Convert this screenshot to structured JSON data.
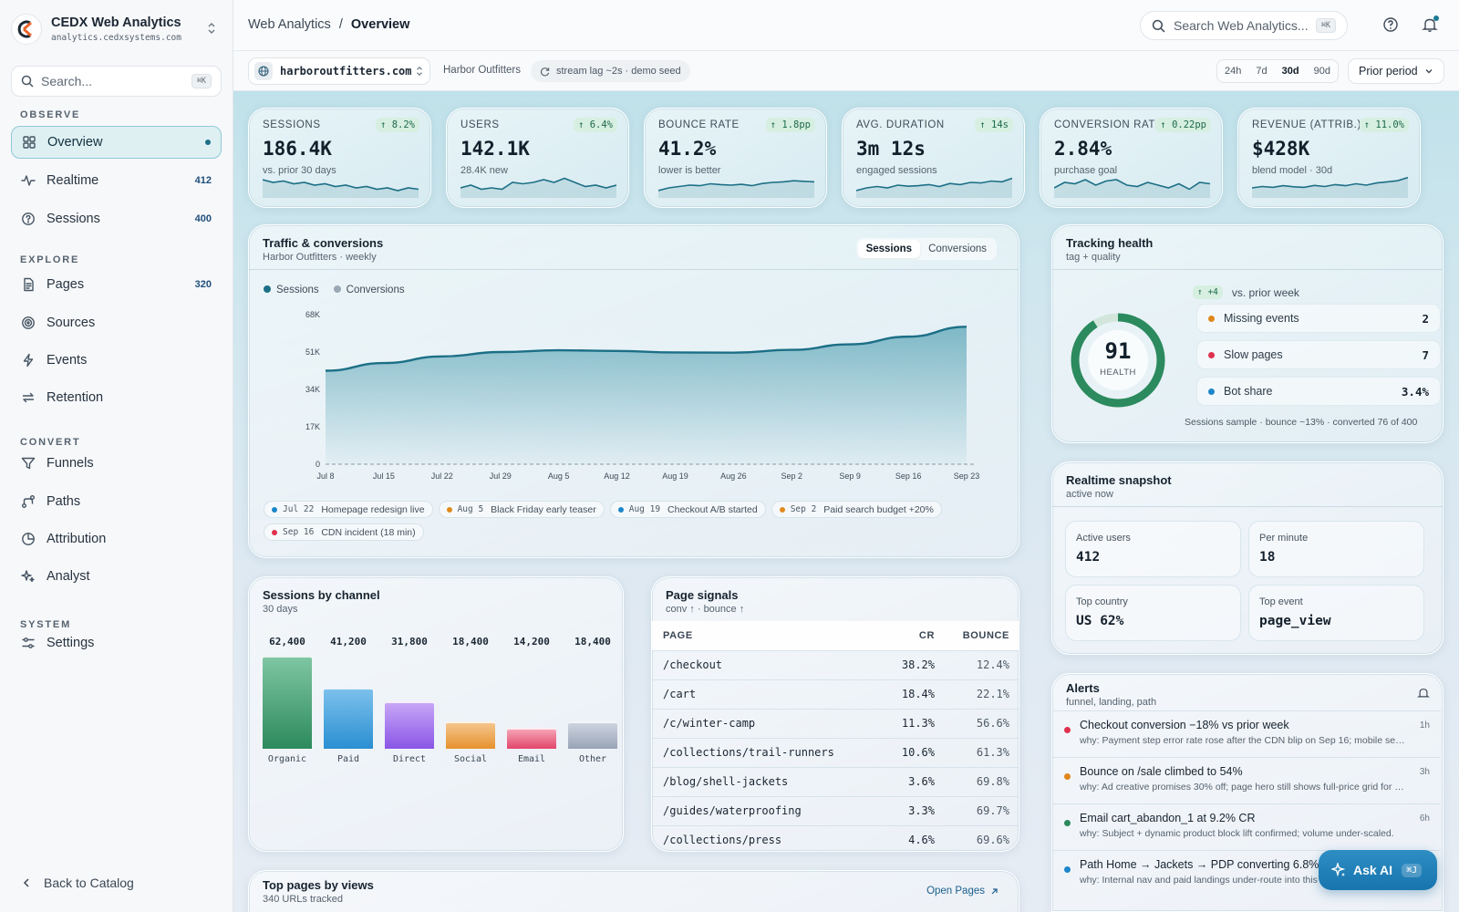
{
  "app": {
    "title": "CEDX Web Analytics",
    "domain": "analytics.cedxsystems.com"
  },
  "sidebar": {
    "search_placeholder": "Search...",
    "search_kbd": "⌘K",
    "sections": {
      "observe": "OBSERVE",
      "explore": "EXPLORE",
      "convert": "CONVERT",
      "system": "SYSTEM"
    },
    "items": [
      {
        "label": "Overview",
        "icon": "grid-icon",
        "count": "",
        "active": true
      },
      {
        "label": "Realtime",
        "icon": "activity-icon",
        "count": "412"
      },
      {
        "label": "Sessions",
        "icon": "clock-icon",
        "count": "400"
      },
      {
        "label": "Pages",
        "icon": "file-icon",
        "count": "320"
      },
      {
        "label": "Sources",
        "icon": "radar-icon",
        "count": ""
      },
      {
        "label": "Events",
        "icon": "bolt-icon",
        "count": ""
      },
      {
        "label": "Retention",
        "icon": "repeat-icon",
        "count": ""
      },
      {
        "label": "Funnels",
        "icon": "funnel-icon",
        "count": ""
      },
      {
        "label": "Paths",
        "icon": "path-icon",
        "count": ""
      },
      {
        "label": "Attribution",
        "icon": "pie-icon",
        "count": ""
      },
      {
        "label": "Analyst",
        "icon": "sparkle-icon",
        "count": ""
      },
      {
        "label": "Settings",
        "icon": "sliders-icon",
        "count": ""
      }
    ],
    "back_label": "Back to Catalog"
  },
  "header": {
    "breadcrumb_root": "Web Analytics",
    "breadcrumb_sep": "/",
    "breadcrumb_current": "Overview",
    "search_placeholder": "Search Web Analytics...",
    "search_kbd": "⌘K"
  },
  "subbar": {
    "site": "harboroutfitters.com",
    "company": "Harbor Outfitters",
    "stream": "stream lag ~2s · demo seed",
    "ranges": [
      "24h",
      "7d",
      "30d",
      "90d"
    ],
    "selected_range": "30d",
    "compare": "Prior period"
  },
  "kpis": [
    {
      "label": "SESSIONS",
      "value": "186.4K",
      "delta": "↑ 8.2%",
      "sub": "vs. prior 30 days",
      "spark": [
        6,
        5,
        5.5,
        4.5,
        5,
        4,
        4.5,
        3.5,
        4,
        3,
        3.5,
        2.5,
        3,
        2,
        3,
        2.5
      ]
    },
    {
      "label": "USERS",
      "value": "142.1K",
      "delta": "↑ 6.4%",
      "sub": "28.4K new",
      "spark": [
        3,
        4,
        2.5,
        3,
        2.5,
        5,
        4.5,
        5,
        6,
        5,
        6.5,
        5,
        3.5,
        4,
        3,
        4
      ]
    },
    {
      "label": "BOUNCE RATE",
      "value": "41.2%",
      "delta": "↑ 1.8pp",
      "sub": "lower is better",
      "spark": [
        2,
        3,
        3.5,
        4,
        3.8,
        4.5,
        4.2,
        4,
        4.3,
        3.8,
        4.6,
        5,
        5.2,
        5.6,
        5.4,
        5.2
      ]
    },
    {
      "label": "AVG. DURATION",
      "value": "3m 12s",
      "delta": "↑ 14s",
      "sub": "engaged sessions",
      "spark": [
        2,
        3,
        3.5,
        3,
        4,
        3.6,
        3.8,
        4.2,
        3.5,
        4.6,
        4.2,
        5,
        4.8,
        5.5,
        5.2,
        6.5
      ]
    },
    {
      "label": "CONVERSION RATE",
      "value": "2.84%",
      "delta": "↑ 0.22pp",
      "sub": "purchase goal",
      "spark": [
        3,
        5,
        4.5,
        6,
        4,
        5.5,
        6,
        4,
        3.5,
        5,
        4,
        3,
        4.5,
        2.5,
        5,
        4.5
      ]
    },
    {
      "label": "REVENUE (ATTRIB.)",
      "value": "$428K",
      "delta": "↑ 11.0%",
      "sub": "blend model · 30d",
      "spark": [
        3,
        3.5,
        3.2,
        3.8,
        3.4,
        3.2,
        3.9,
        3.5,
        4.2,
        3.8,
        4.5,
        4,
        4.8,
        5.2,
        5.6,
        6.8
      ]
    }
  ],
  "traffic": {
    "title": "Traffic & conversions",
    "subtitle": "Harbor Outfitters · weekly",
    "tabs": [
      "Sessions",
      "Conversions"
    ],
    "active_tab": "Sessions",
    "legend": [
      "Sessions",
      "Conversions"
    ],
    "annotations": [
      {
        "date": "Jul 22",
        "text": "Homepage redesign live",
        "color": "#1c86c8"
      },
      {
        "date": "Aug 5",
        "text": "Black Friday early teaser",
        "color": "#e08a1e"
      },
      {
        "date": "Aug 19",
        "text": "Checkout A/B started",
        "color": "#1c86c8"
      },
      {
        "date": "Sep 2",
        "text": "Paid search budget +20%",
        "color": "#e08a1e"
      },
      {
        "date": "Sep 16",
        "text": "CDN incident (18 min)",
        "color": "#e0314f"
      }
    ]
  },
  "chart_data": {
    "type": "area",
    "x": [
      "Jul 8",
      "Jul 15",
      "Jul 22",
      "Jul 29",
      "Aug 5",
      "Aug 12",
      "Aug 19",
      "Aug 26",
      "Sep 2",
      "Sep 9",
      "Sep 16",
      "Sep 23"
    ],
    "series": [
      {
        "name": "Sessions",
        "values": [
          42500,
          46000,
          49000,
          51000,
          51800,
          51500,
          50800,
          50700,
          52000,
          54500,
          58000,
          62500
        ]
      },
      {
        "name": "Conversions",
        "values": [
          0,
          0,
          0,
          0,
          0,
          0,
          0,
          0,
          0,
          0,
          0,
          0
        ]
      }
    ],
    "yticks": [
      "0",
      "17K",
      "34K",
      "51K",
      "68K"
    ],
    "ylim": [
      0,
      68000
    ],
    "legend_position": "top-left",
    "grid": false
  },
  "health": {
    "title": "Tracking health",
    "subtitle": "tag + quality",
    "score": "91",
    "score_label": "HEALTH",
    "score_fraction": 0.91,
    "delta": "↑ +4",
    "delta_text": "vs. prior week",
    "rows": [
      {
        "label": "Missing events",
        "value": "2",
        "color": "#e0861c"
      },
      {
        "label": "Slow pages",
        "value": "7",
        "color": "#e0314f"
      },
      {
        "label": "Bot share",
        "value": "3.4%",
        "color": "#1c86c8"
      }
    ],
    "footer": "Sessions sample · bounce ~13% · converted 76 of 400"
  },
  "realtime": {
    "title": "Realtime snapshot",
    "subtitle": "active now",
    "tiles": [
      {
        "label": "Active users",
        "value": "412"
      },
      {
        "label": "Per minute",
        "value": "18"
      },
      {
        "label": "Top country",
        "value": "US 62%"
      },
      {
        "label": "Top event",
        "value": "page_view"
      }
    ]
  },
  "channels": {
    "title": "Sessions by channel",
    "subtitle": "30 days",
    "items": [
      {
        "name": "Organic",
        "value": 62400,
        "label": "62,400",
        "color_top": "#7fc6a3",
        "color_bottom": "#2c8a5c"
      },
      {
        "name": "Paid",
        "value": 41200,
        "label": "41,200",
        "color_top": "#7cc0ec",
        "color_bottom": "#2a8fd2"
      },
      {
        "name": "Direct",
        "value": 31800,
        "label": "31,800",
        "color_top": "#c7a6f6",
        "color_bottom": "#8a55e6"
      },
      {
        "name": "Social",
        "value": 18400,
        "label": "18,400",
        "color_top": "#f5c58c",
        "color_bottom": "#e6922e"
      },
      {
        "name": "Email",
        "value": 14200,
        "label": "14,200",
        "color_top": "#f5a3b5",
        "color_bottom": "#e2466a"
      },
      {
        "name": "Other",
        "value": 18400,
        "label": "18,400",
        "color_top": "#cdd4df",
        "color_bottom": "#98a4b6"
      }
    ]
  },
  "page_signals": {
    "title": "Page signals",
    "subtitle": "conv ↑ · bounce ↑",
    "columns": [
      "PAGE",
      "CR",
      "BOUNCE"
    ],
    "rows": [
      [
        "/checkout",
        "38.2%",
        "12.4%"
      ],
      [
        "/cart",
        "18.4%",
        "22.1%"
      ],
      [
        "/c/winter-camp",
        "11.3%",
        "56.6%"
      ],
      [
        "/collections/trail-runners",
        "10.6%",
        "61.3%"
      ],
      [
        "/blog/shell-jackets",
        "3.6%",
        "69.8%"
      ],
      [
        "/guides/waterproofing",
        "3.3%",
        "69.7%"
      ],
      [
        "/collections/press",
        "4.6%",
        "69.6%"
      ]
    ]
  },
  "alerts": {
    "title": "Alerts",
    "subtitle": "funnel, landing, path",
    "items": [
      {
        "title": "Checkout conversion −18% vs prior week",
        "why": "why: Payment step error rate rose after the CDN blip on Sep 16; mobile session...",
        "ago": "1h",
        "color": "#e0314f"
      },
      {
        "title": "Bounce on /sale climbed to 54%",
        "why": "why: Ad creative promises 30% off; page hero still shows full-price grid for new...",
        "ago": "3h",
        "color": "#e0861c"
      },
      {
        "title": "Email cart_abandon_1 at 9.2% CR",
        "why": "why: Subject + dynamic product block lift confirmed; volume under-scaled.",
        "ago": "6h",
        "color": "#2c8a5c"
      },
      {
        "title": "Path Home → Jackets → PDP converting 6.8%",
        "why": "why: Internal nav and paid landings under-route into this path.",
        "ago": "",
        "color": "#1c86c8"
      }
    ]
  },
  "top_pages": {
    "title": "Top pages by views",
    "subtitle": "340 URLs tracked",
    "link": "Open Pages"
  },
  "ask_ai": {
    "label": "Ask AI",
    "kbd": "⌘J"
  }
}
